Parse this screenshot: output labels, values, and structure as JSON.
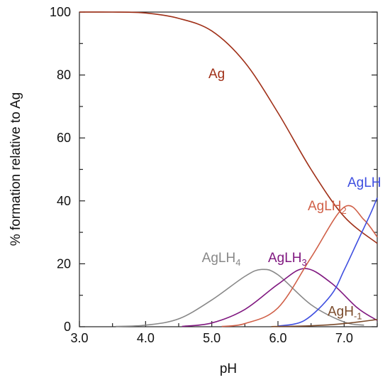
{
  "chart_data": {
    "type": "line",
    "title": "",
    "xlabel": "pH",
    "ylabel": "% formation relative to Ag",
    "xlim": [
      3.0,
      7.5
    ],
    "ylim": [
      0,
      100
    ],
    "x_ticks": [
      {
        "value": 3.0,
        "label": "3.0"
      },
      {
        "value": 4.0,
        "label": "4.0"
      },
      {
        "value": 5.0,
        "label": "5.0"
      },
      {
        "value": 6.0,
        "label": "6.0"
      },
      {
        "value": 7.0,
        "label": "7.0"
      }
    ],
    "y_ticks": [
      {
        "value": 0,
        "label": "0"
      },
      {
        "value": 20,
        "label": "20"
      },
      {
        "value": 40,
        "label": "40"
      },
      {
        "value": 60,
        "label": "60"
      },
      {
        "value": 80,
        "label": "80"
      },
      {
        "value": 100,
        "label": "100"
      }
    ],
    "grid": false,
    "series": [
      {
        "name": "Ag",
        "base": "Ag",
        "sub": "",
        "color": "#a03018",
        "x": [
          3.0,
          3.5,
          4.0,
          4.5,
          5.0,
          5.5,
          6.0,
          6.5,
          7.0,
          7.5
        ],
        "y": [
          100,
          100,
          99.7,
          98,
          94,
          84,
          68,
          50,
          35,
          26.5
        ]
      },
      {
        "name": "AgLH4",
        "base": "AgLH",
        "sub": "4",
        "color": "#888888",
        "x": [
          3.55,
          4.0,
          4.5,
          5.0,
          5.5,
          5.75,
          6.0,
          6.5,
          7.0,
          7.3
        ],
        "y": [
          0.1,
          0.5,
          2.5,
          8.5,
          16,
          18.2,
          16.5,
          7,
          1.5,
          0.5
        ]
      },
      {
        "name": "AgLH3",
        "base": "AgLH",
        "sub": "3",
        "color": "#801880",
        "x": [
          4.55,
          5.0,
          5.5,
          6.0,
          6.4,
          6.8,
          7.2,
          7.5
        ],
        "y": [
          0.1,
          1.2,
          5.5,
          13.5,
          18.5,
          14,
          6,
          2
        ]
      },
      {
        "name": "AgLH2",
        "base": "AgLH",
        "sub": "2",
        "color": "#d06048",
        "x": [
          5.15,
          5.5,
          6.0,
          6.5,
          7.0,
          7.3,
          7.5
        ],
        "y": [
          0.1,
          1,
          6,
          22,
          38,
          34,
          28.5
        ]
      },
      {
        "name": "AgLH",
        "base": "AgLH",
        "sub": "",
        "color": "#3f4fe0",
        "x": [
          6.0,
          6.4,
          6.8,
          7.0,
          7.2,
          7.4,
          7.5
        ],
        "y": [
          0.2,
          2,
          10,
          18,
          27,
          36,
          41
        ]
      },
      {
        "name": "AgH-1",
        "base": "AgH",
        "sub": "-1",
        "color": "#7a4a2a",
        "x": [
          5.9,
          6.5,
          7.0,
          7.5
        ],
        "y": [
          0.05,
          0.3,
          1,
          2.3
        ]
      }
    ],
    "annotations": [
      {
        "series": "Ag",
        "x": 4.95,
        "y": 79
      },
      {
        "series": "AgLH2",
        "x": 6.45,
        "y": 37
      },
      {
        "series": "AgLH",
        "x": 7.05,
        "y": 44.5
      },
      {
        "series": "AgLH4",
        "x": 4.85,
        "y": 20.5
      },
      {
        "series": "AgLH3",
        "x": 5.85,
        "y": 20.5
      },
      {
        "series": "AgH-1",
        "x": 6.75,
        "y": 3.5
      }
    ]
  }
}
